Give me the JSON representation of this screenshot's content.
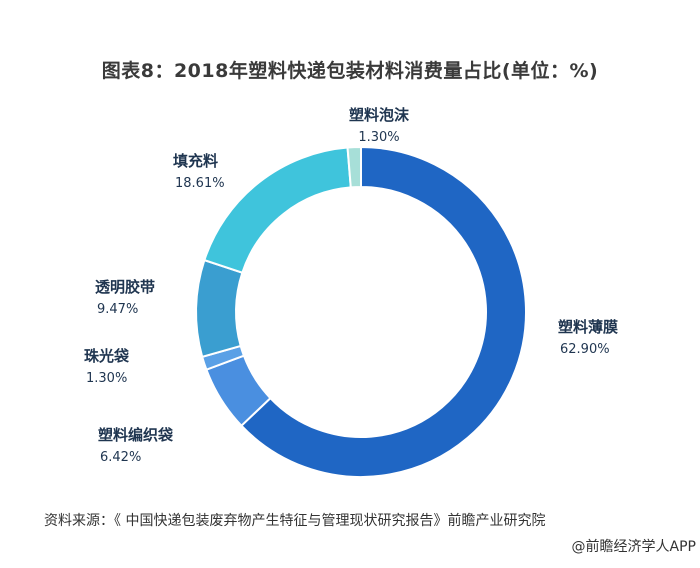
{
  "title": "图表8：2018年塑料快递包装材料消费量占比(单位：%)",
  "chart_data": {
    "type": "pie",
    "donut": true,
    "title": "图表8：2018年塑料快递包装材料消费量占比(单位：%)",
    "unit": "%",
    "categories": [
      "塑料薄膜",
      "塑料编织袋",
      "珠光袋",
      "透明胶带",
      "填充料",
      "塑料泡沫"
    ],
    "values": [
      62.9,
      6.42,
      1.3,
      9.47,
      18.61,
      1.3
    ],
    "value_labels": [
      "62.90%",
      "6.42%",
      "1.30%",
      "9.47%",
      "18.61%",
      "1.30%"
    ],
    "colors": [
      "#1f66c4",
      "#4a8fe0",
      "#5aa0e6",
      "#3a9ed0",
      "#3fc4dc",
      "#a7dfd8"
    ],
    "start": "top",
    "direction": "clockwise",
    "legend": "none"
  },
  "source": "资料来源：《 中国快递包装废弃物产生特征与管理现状研究报告》前瞻产业研究院",
  "credit": "@前瞻经济学人APP"
}
